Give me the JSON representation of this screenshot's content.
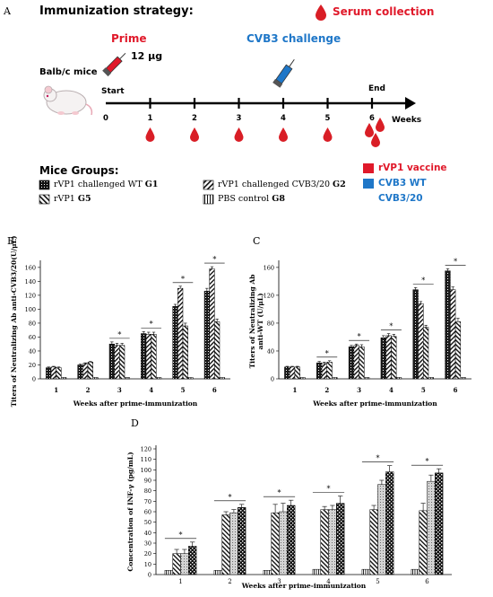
{
  "panel_a": {
    "letter": "A",
    "title": "Immunization strategy:",
    "serum_label": "Serum collection",
    "prime_label": "Prime",
    "dose_label": "12 μg",
    "challenge_label": "CVB3 challenge",
    "mice_label": "Balb/c mice",
    "start_label": "Start",
    "end_label": "End",
    "weeks_label": "Weeks",
    "ticks": [
      "0",
      "1",
      "2",
      "3",
      "4",
      "5",
      "6"
    ],
    "groups_title": "Mice Groups:",
    "groups": [
      {
        "text": "rVP1 challenged WT ",
        "bold": "G1"
      },
      {
        "text": "rVP1 challenged CVB3/20 ",
        "bold": "G2"
      },
      {
        "text": "rVP1 ",
        "bold": "G5"
      },
      {
        "text": "PBS control ",
        "bold": "G8"
      }
    ],
    "color_legend": [
      {
        "text": "rVP1 vaccine",
        "color": "#e0192a"
      },
      {
        "text": "CVB3 WT",
        "color": "#1f77c8"
      },
      {
        "text": "CVB3/20",
        "color": "#1f77c8"
      }
    ],
    "colors": {
      "red": "#e0192a",
      "blue": "#1f77c8",
      "drop": "#d91e26"
    }
  },
  "chart_data": [
    {
      "panel": "B",
      "type": "bar",
      "ylabel": "Titers of Neutralizing Ab anti-CVB3/20(U/μL)",
      "xlabel": "Weeks after prime-immunization",
      "categories": [
        "1",
        "2",
        "3",
        "4",
        "5",
        "6"
      ],
      "yticks": [
        "0",
        "20",
        "40",
        "60",
        "80",
        "100",
        "120",
        "140",
        "160"
      ],
      "ylim": [
        0,
        165
      ],
      "series": [
        {
          "values": [
            16,
            20,
            50,
            65,
            104,
            126
          ],
          "errors": [
            1,
            1,
            3,
            3,
            3,
            4
          ],
          "pattern": "dots"
        },
        {
          "values": [
            17,
            22,
            48,
            64,
            130,
            158
          ],
          "errors": [
            1,
            1,
            3,
            3,
            3,
            3
          ],
          "pattern": "diag-right"
        },
        {
          "values": [
            16,
            24,
            48,
            64,
            76,
            82
          ],
          "errors": [
            1,
            1,
            3,
            3,
            4,
            4
          ],
          "pattern": "diag-left"
        },
        {
          "values": [
            2,
            2,
            2,
            2,
            2,
            2
          ],
          "errors": [
            0,
            0,
            0,
            0,
            0,
            0
          ],
          "pattern": "vlines"
        }
      ],
      "significance": [
        "",
        "",
        "*",
        "*",
        "*",
        "*"
      ]
    },
    {
      "panel": "C",
      "type": "bar",
      "ylabel": "Titers of Neutralizing Ab anti-WT (U/μL)",
      "xlabel": "Weeks after prime-immunization",
      "categories": [
        "1",
        "2",
        "3",
        "4",
        "5",
        "6"
      ],
      "yticks": [
        "0",
        "40",
        "80",
        "120",
        "160"
      ],
      "ylim": [
        0,
        165
      ],
      "series": [
        {
          "values": [
            17,
            23,
            46,
            59,
            128,
            155
          ],
          "errors": [
            1,
            2,
            2,
            3,
            3,
            3
          ],
          "pattern": "dots"
        },
        {
          "values": [
            17,
            22,
            48,
            62,
            108,
            128
          ],
          "errors": [
            1,
            2,
            2,
            3,
            3,
            4
          ],
          "pattern": "diag-right"
        },
        {
          "values": [
            17,
            24,
            46,
            61,
            74,
            82
          ],
          "errors": [
            1,
            2,
            3,
            3,
            3,
            5
          ],
          "pattern": "diag-left"
        },
        {
          "values": [
            2,
            2,
            2,
            2,
            2,
            2
          ],
          "errors": [
            0,
            0,
            0,
            0,
            0,
            0
          ],
          "pattern": "vlines"
        }
      ],
      "significance": [
        "",
        "*",
        "*",
        "*",
        "*",
        "*"
      ]
    },
    {
      "panel": "D",
      "type": "bar",
      "ylabel": "Concentration of INF-γ (pg/mL)",
      "xlabel": "Weeks after prime-immunization",
      "categories": [
        "1",
        "2",
        "3",
        "4",
        "5",
        "6"
      ],
      "yticks": [
        "0",
        "10",
        "20",
        "30",
        "40",
        "50",
        "60",
        "70",
        "80",
        "90",
        "100",
        "110",
        "120"
      ],
      "ylim": [
        0,
        120
      ],
      "series": [
        {
          "values": [
            4,
            4,
            4,
            5,
            5,
            5
          ],
          "errors": [
            0,
            0,
            0,
            0,
            0,
            0
          ],
          "pattern": "vlines"
        },
        {
          "values": [
            20,
            57,
            59,
            62,
            62,
            61
          ],
          "errors": [
            4,
            3,
            8,
            3,
            4,
            7
          ],
          "pattern": "diag-left"
        },
        {
          "values": [
            20,
            59,
            60,
            62,
            86,
            89
          ],
          "errors": [
            4,
            3,
            8,
            4,
            4,
            6
          ],
          "pattern": "grey-dots"
        },
        {
          "values": [
            27,
            64,
            66,
            68,
            98,
            97
          ],
          "errors": [
            4,
            3,
            5,
            7,
            6,
            4
          ],
          "pattern": "checker"
        }
      ],
      "significance": [
        "*",
        "*",
        "*",
        "*",
        "*",
        "*"
      ]
    }
  ]
}
